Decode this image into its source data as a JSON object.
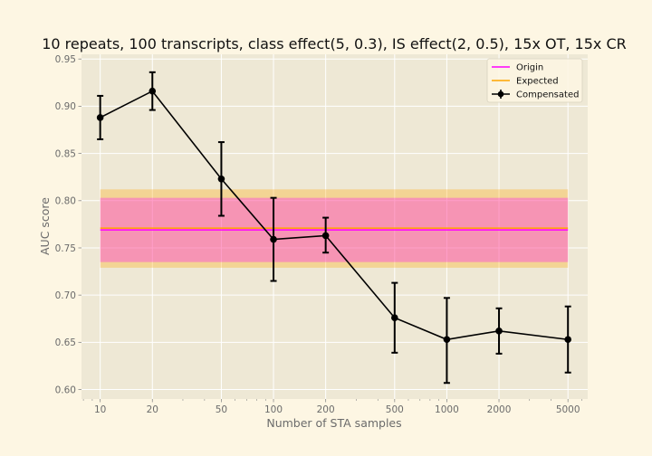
{
  "chart_data": {
    "type": "line",
    "title": "10 repeats, 100 transcripts, class effect(5, 0.3), IS effect(2, 0.5), 15x OT, 15x CR",
    "xlabel": "Number of STA samples",
    "ylabel": "AUC score",
    "x_scale": "log",
    "xlim": [
      7.8,
      6500
    ],
    "ylim": [
      0.59,
      0.955
    ],
    "x_ticks": [
      10,
      20,
      50,
      100,
      200,
      500,
      1000,
      2000,
      5000
    ],
    "x_tick_labels": [
      "10",
      "20",
      "50",
      "100",
      "200",
      "500",
      "1000",
      "2000",
      "5000"
    ],
    "y_ticks": [
      0.6,
      0.65,
      0.7,
      0.75,
      0.8,
      0.85,
      0.9,
      0.95
    ],
    "y_tick_labels": [
      "0.60",
      "0.65",
      "0.70",
      "0.75",
      "0.80",
      "0.85",
      "0.90",
      "0.95"
    ],
    "grid": true,
    "legend_position": "top-right",
    "series": [
      {
        "name": "Origin",
        "color": "#ff00ff",
        "kind": "hline",
        "x_range": [
          10,
          5000
        ],
        "value": 0.769,
        "band": [
          0.735,
          0.803
        ]
      },
      {
        "name": "Expected",
        "color": "#ffa500",
        "kind": "hline",
        "x_range": [
          10,
          5000
        ],
        "value": 0.771,
        "band": [
          0.729,
          0.812
        ]
      },
      {
        "name": "Compensated",
        "color": "#000000",
        "kind": "errorbar",
        "x": [
          10,
          20,
          50,
          100,
          200,
          500,
          1000,
          2000,
          5000
        ],
        "values": [
          0.888,
          0.916,
          0.823,
          0.759,
          0.763,
          0.676,
          0.653,
          0.662,
          0.653
        ],
        "lower": [
          0.865,
          0.896,
          0.784,
          0.715,
          0.745,
          0.639,
          0.607,
          0.638,
          0.618
        ],
        "upper": [
          0.911,
          0.936,
          0.862,
          0.803,
          0.782,
          0.713,
          0.697,
          0.686,
          0.688
        ]
      }
    ]
  }
}
